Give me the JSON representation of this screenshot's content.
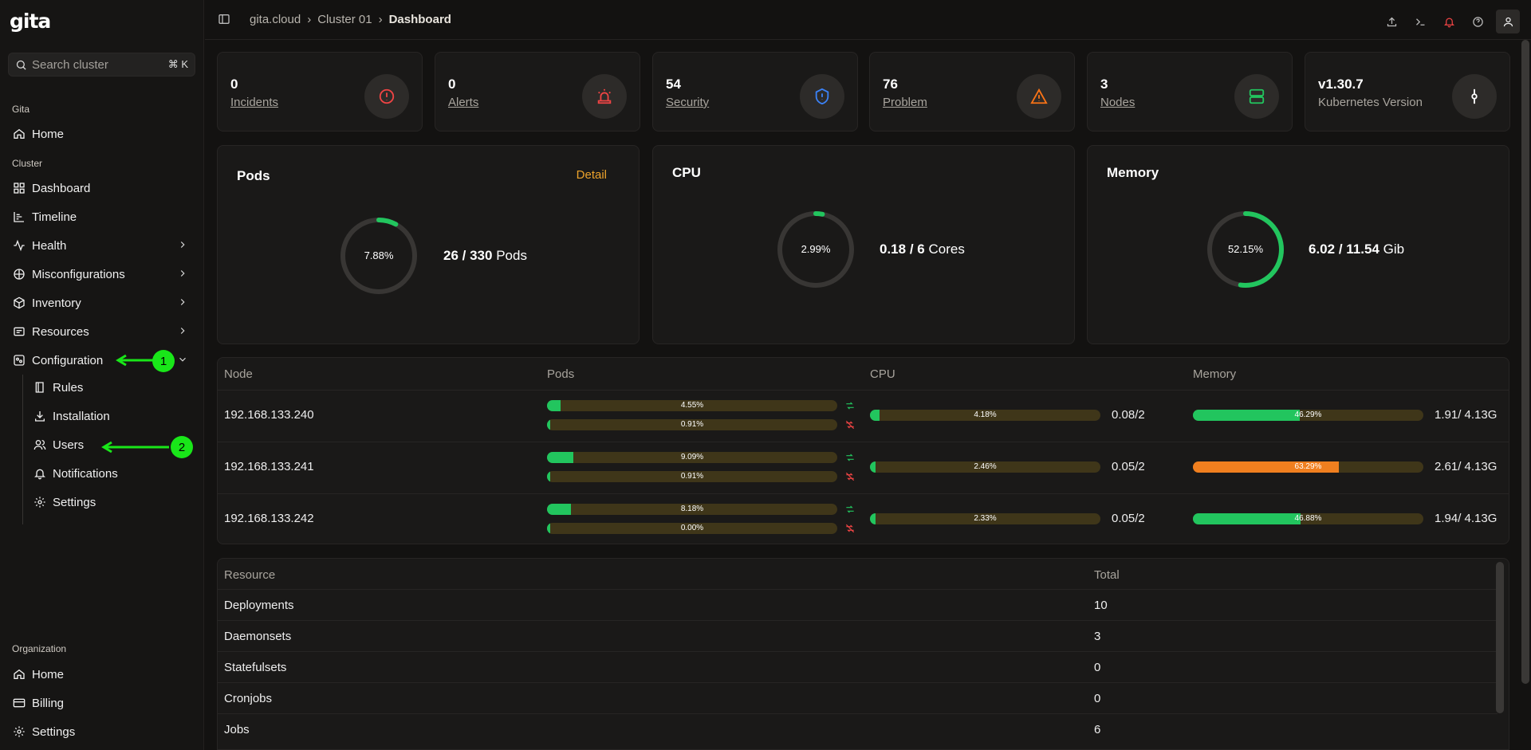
{
  "app": {
    "logo": "gita"
  },
  "search": {
    "placeholder": "Search cluster",
    "shortcut": "⌘ K"
  },
  "sidebar": {
    "groups": {
      "gita": "Gita",
      "cluster": "Cluster",
      "org": "Organization"
    },
    "gita_items": [
      {
        "label": "Home",
        "icon": "home-icon"
      }
    ],
    "cluster_items": [
      {
        "label": "Dashboard",
        "icon": "dashboard-icon"
      },
      {
        "label": "Timeline",
        "icon": "timeline-icon"
      },
      {
        "label": "Health",
        "icon": "health-icon"
      },
      {
        "label": "Misconfigurations",
        "icon": "misconfig-icon"
      },
      {
        "label": "Inventory",
        "icon": "box-icon"
      },
      {
        "label": "Resources",
        "icon": "resources-icon"
      },
      {
        "label": "Configuration",
        "icon": "configuration-icon"
      }
    ],
    "config_items": [
      {
        "label": "Rules",
        "icon": "book-icon"
      },
      {
        "label": "Installation",
        "icon": "download-icon"
      },
      {
        "label": "Users",
        "icon": "users-icon"
      },
      {
        "label": "Notifications",
        "icon": "bell-icon"
      },
      {
        "label": "Settings",
        "icon": "gear-icon"
      }
    ],
    "org_items": [
      {
        "label": "Home",
        "icon": "home-icon"
      },
      {
        "label": "Billing",
        "icon": "billing-icon"
      },
      {
        "label": "Settings",
        "icon": "gear-icon"
      }
    ],
    "annotations": [
      "1",
      "2"
    ],
    "annotation_color": "#19e619"
  },
  "breadcrumb": {
    "root": "gita.cloud",
    "cluster": "Cluster 01",
    "current": "Dashboard"
  },
  "stats": [
    {
      "value": "0",
      "label": "Incidents",
      "icon": "incident-icon",
      "color": "#ef4444"
    },
    {
      "value": "0",
      "label": "Alerts",
      "icon": "siren-icon",
      "color": "#ef4444"
    },
    {
      "value": "54",
      "label": "Security",
      "icon": "shield-icon",
      "color": "#3b82f6"
    },
    {
      "value": "76",
      "label": "Problem",
      "icon": "warning-icon",
      "color": "#f97316"
    },
    {
      "value": "3",
      "label": "Nodes",
      "icon": "server-icon",
      "color": "#22c55e"
    },
    {
      "value": "v1.30.7",
      "label": "Kubernetes Version",
      "icon": "commit-icon",
      "color": "#ffffff"
    }
  ],
  "usage": {
    "pods": {
      "title": "Pods",
      "detail": "Detail",
      "percent_label": "7.88%",
      "percent": 7.88,
      "used": "26",
      "total": "330",
      "unit": "Pods"
    },
    "cpu": {
      "title": "CPU",
      "percent_label": "2.99%",
      "percent": 2.99,
      "used": "0.18",
      "total": "6",
      "unit": "Cores"
    },
    "memory": {
      "title": "Memory",
      "percent_label": "52.15%",
      "percent": 52.15,
      "used": "6.02",
      "total": "11.54",
      "unit": "Gib"
    }
  },
  "nodes_table": {
    "headers": [
      "Node",
      "Pods",
      "CPU",
      "Memory"
    ],
    "rows": [
      {
        "ip": "192.168.133.240",
        "pods_a": 4.55,
        "pods_a_label": "4.55%",
        "pods_b": 0.91,
        "pods_b_label": "0.91%",
        "cpu": 4.18,
        "cpu_label": "4.18%",
        "cpu_ratio": "0.08/2",
        "mem": 46.29,
        "mem_label": "46.29%",
        "mem_ratio": "1.91/ 4.13G",
        "mem_warn": false
      },
      {
        "ip": "192.168.133.241",
        "pods_a": 9.09,
        "pods_a_label": "9.09%",
        "pods_b": 0.91,
        "pods_b_label": "0.91%",
        "cpu": 2.46,
        "cpu_label": "2.46%",
        "cpu_ratio": "0.05/2",
        "mem": 63.29,
        "mem_label": "63.29%",
        "mem_ratio": "2.61/ 4.13G",
        "mem_warn": true
      },
      {
        "ip": "192.168.133.242",
        "pods_a": 8.18,
        "pods_a_label": "8.18%",
        "pods_b": 0.0,
        "pods_b_label": "0.00%",
        "cpu": 2.33,
        "cpu_label": "2.33%",
        "cpu_ratio": "0.05/2",
        "mem": 46.88,
        "mem_label": "46.88%",
        "mem_ratio": "1.94/ 4.13G",
        "mem_warn": false
      }
    ]
  },
  "resources_table": {
    "headers": [
      "Resource",
      "Total"
    ],
    "rows": [
      {
        "name": "Deployments",
        "total": "10"
      },
      {
        "name": "Daemonsets",
        "total": "3"
      },
      {
        "name": "Statefulsets",
        "total": "0"
      },
      {
        "name": "Cronjobs",
        "total": "0"
      },
      {
        "name": "Jobs",
        "total": "6"
      }
    ]
  }
}
